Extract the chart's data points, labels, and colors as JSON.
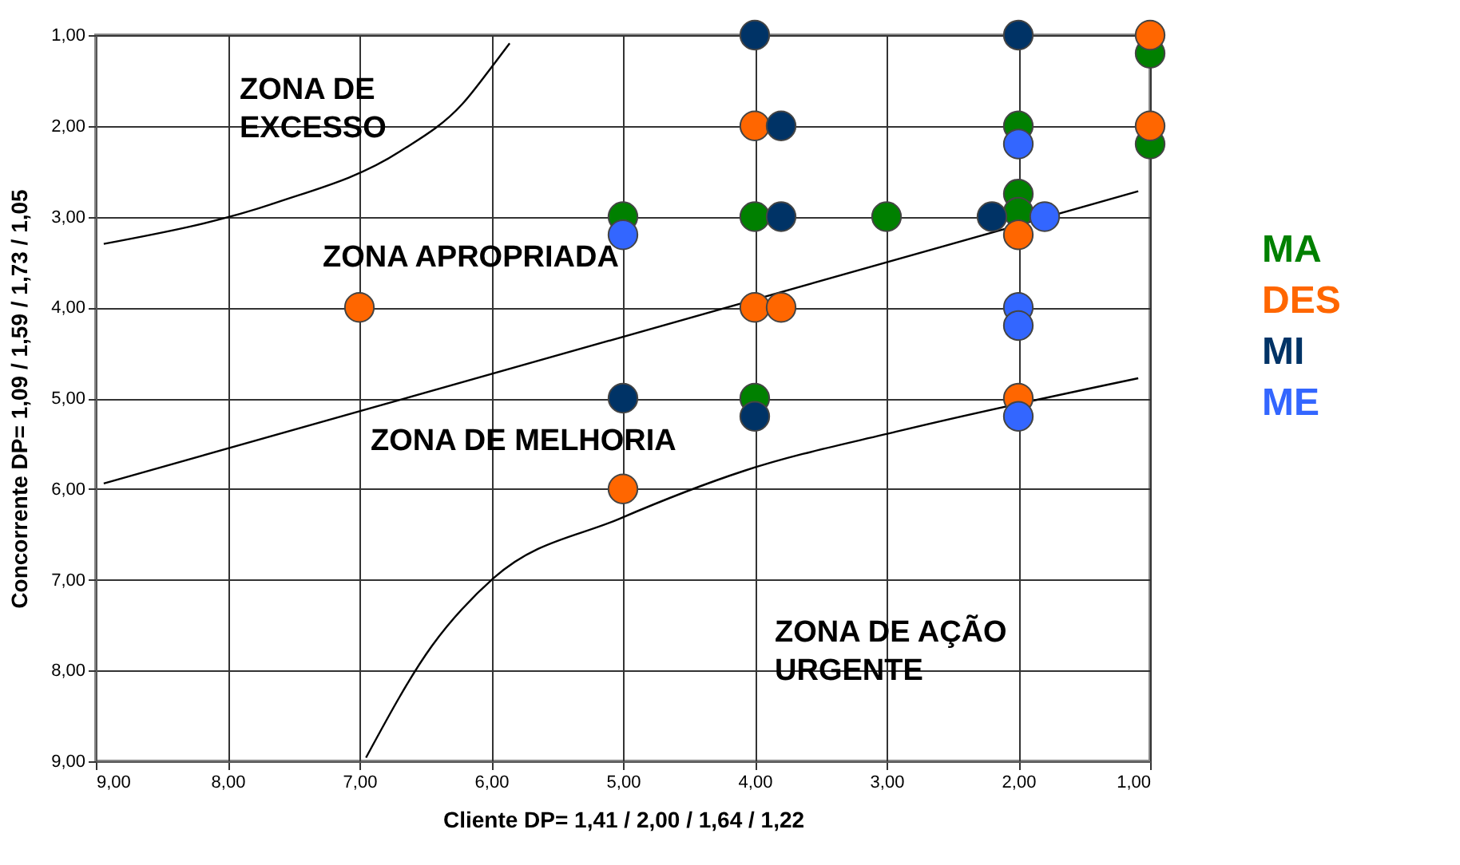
{
  "chart_data": {
    "type": "scatter",
    "xlabel": "Cliente DP= 1,41 / 2,00 / 1,64 / 1,22",
    "ylabel": "Concorrente DP= 1,09 / 1,59 / 1,73 / 1,05",
    "xlim": [
      9,
      1
    ],
    "ylim": [
      9,
      1
    ],
    "xticks": [
      {
        "value": 9,
        "label": "9,00"
      },
      {
        "value": 8,
        "label": "8,00"
      },
      {
        "value": 7,
        "label": "7,00"
      },
      {
        "value": 6,
        "label": "6,00"
      },
      {
        "value": 5,
        "label": "5,00"
      },
      {
        "value": 4,
        "label": "4,00"
      },
      {
        "value": 3,
        "label": "3,00"
      },
      {
        "value": 2,
        "label": "2,00"
      },
      {
        "value": 1,
        "label": "1,00"
      }
    ],
    "yticks": [
      {
        "value": 9,
        "label": "9,00"
      },
      {
        "value": 8,
        "label": "8,00"
      },
      {
        "value": 7,
        "label": "7,00"
      },
      {
        "value": 6,
        "label": "6,00"
      },
      {
        "value": 5,
        "label": "5,00"
      },
      {
        "value": 4,
        "label": "4,00"
      },
      {
        "value": 3,
        "label": "3,00"
      },
      {
        "value": 2,
        "label": "2,00"
      },
      {
        "value": 1,
        "label": "1,00"
      }
    ],
    "grid": true,
    "legend": "right",
    "marker": "circle",
    "annotations": [
      "ZONA DE\nEXCESSO",
      "ZONA APROPRIADA",
      "ZONA DE MELHORIA",
      "ZONA DE AÇÃO\nURGENTE"
    ],
    "series": [
      {
        "type": "line",
        "color": "#000000",
        "line_style": "solid",
        "marker": "none",
        "x": [
          8.94,
          7.64,
          6.69,
          6.22,
          5.98,
          5.86
        ],
        "values": [
          3.3,
          2.85,
          2.28,
          1.76,
          1.32,
          1.09
        ]
      },
      {
        "type": "line",
        "color": "#000000",
        "line_style": "solid",
        "marker": "none",
        "x": [
          8.94,
          1.09
        ],
        "values": [
          5.94,
          2.72
        ]
      },
      {
        "type": "line",
        "color": "#000000",
        "line_style": "solid",
        "marker": "none",
        "x": [
          6.95,
          6.45,
          5.98,
          5.03,
          4.08,
          2.9,
          1.09
        ],
        "values": [
          8.96,
          7.73,
          6.98,
          6.33,
          5.8,
          5.36,
          4.78
        ]
      },
      {
        "name": "MA",
        "color": "#008000",
        "x": [
          1,
          1,
          2,
          2,
          2,
          3,
          4,
          5,
          4
        ],
        "values": [
          1.2,
          2.2,
          2,
          2.75,
          2.95,
          3,
          3,
          3,
          5
        ]
      },
      {
        "name": "DES",
        "color": "#ff6600",
        "x": [
          1,
          1,
          4,
          2,
          4,
          3.8,
          7,
          2,
          5
        ],
        "values": [
          1,
          2,
          2,
          3.2,
          4,
          4,
          4,
          5,
          6
        ]
      },
      {
        "name": "MI",
        "color": "#003366",
        "x": [
          4,
          2,
          3.8,
          3.8,
          2.2,
          5,
          4
        ],
        "values": [
          1,
          1,
          2,
          3,
          3,
          5,
          5.2
        ]
      },
      {
        "name": "ME",
        "color": "#3366ff",
        "x": [
          2,
          1.8,
          5,
          2,
          2,
          2
        ],
        "values": [
          2.2,
          3,
          3.2,
          4,
          4.2,
          5.2
        ]
      }
    ]
  }
}
